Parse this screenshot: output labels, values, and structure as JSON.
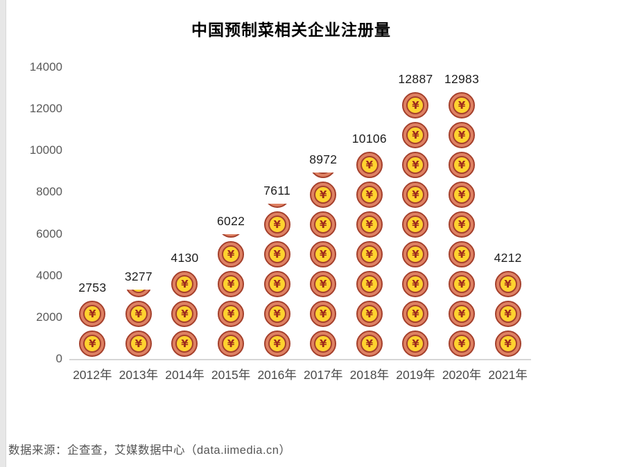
{
  "page": {
    "title": "中国预制菜相关企业注册量"
  },
  "chart_data": {
    "type": "bar",
    "pictogram": "coin-yen",
    "title": "中国预制菜相关企业注册量",
    "categories": [
      "2012年",
      "2013年",
      "2014年",
      "2015年",
      "2016年",
      "2017年",
      "2018年",
      "2019年",
      "2020年",
      "2021年"
    ],
    "values": [
      2753,
      3277,
      4130,
      6022,
      7611,
      8972,
      10106,
      12887,
      12983,
      4212
    ],
    "coins": [
      {
        "full": 2,
        "partial": 0
      },
      {
        "full": 2,
        "partial": 0.28
      },
      {
        "full": 3,
        "partial": 0
      },
      {
        "full": 4,
        "partial": 0.13
      },
      {
        "full": 5,
        "partial": 0.17
      },
      {
        "full": 6,
        "partial": 0.2
      },
      {
        "full": 7,
        "partial": 0
      },
      {
        "full": 9,
        "partial": 0
      },
      {
        "full": 9,
        "partial": 0
      },
      {
        "full": 3,
        "partial": 0
      }
    ],
    "xlabel": "",
    "ylabel": "",
    "ylim": [
      0,
      14000
    ],
    "yticks": [
      0,
      2000,
      4000,
      6000,
      8000,
      10000,
      12000,
      14000
    ],
    "grid": false,
    "legend": null
  },
  "icons": {
    "coin_symbol": "¥"
  },
  "colors": {
    "coin_outer": "#DE8163",
    "coin_ring": "#A5402C",
    "coin_face": "#FFD22F",
    "yen": "#9E2B1C",
    "axis_line": "#D6D6D6",
    "tick_text": "#595959",
    "value_text": "#1D1D1D",
    "title_text": "#000000",
    "source_text": "#555555"
  },
  "source_note": "数据来源：企查查，艾媒数据中心（data.iimedia.cn）"
}
